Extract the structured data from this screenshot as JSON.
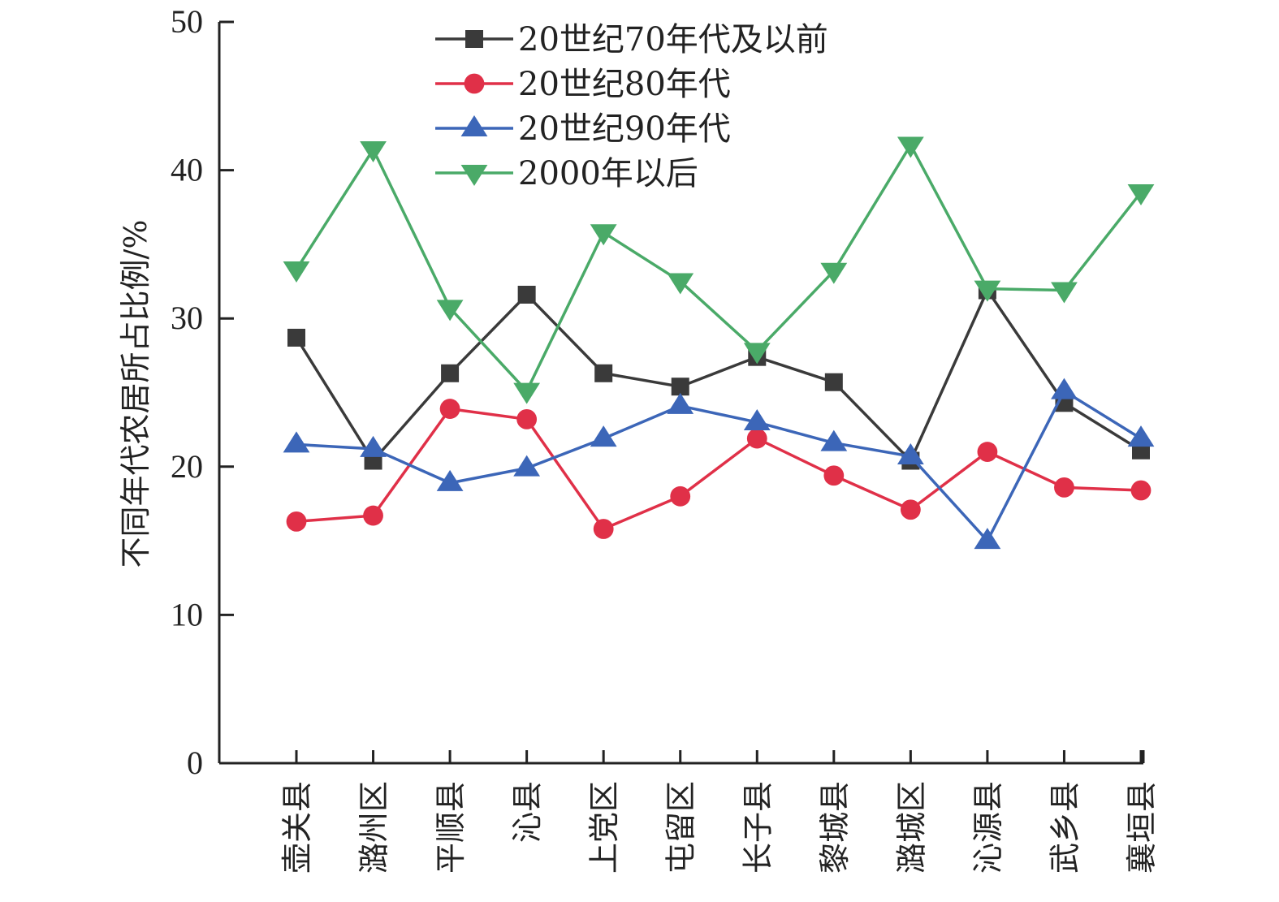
{
  "chart_data": {
    "type": "line",
    "title": "",
    "xlabel": "",
    "ylabel": "不同年代农居所占比例/%",
    "ylim": [
      0,
      50
    ],
    "yticks": [
      0,
      10,
      20,
      30,
      40,
      50
    ],
    "grid": false,
    "legend_position": "top-center",
    "categories": [
      "壶关县",
      "潞州区",
      "平顺县",
      "沁县",
      "上党区",
      "屯留区",
      "长子县",
      "黎城县",
      "潞城区",
      "沁源县",
      "武乡县",
      "襄垣县"
    ],
    "series": [
      {
        "name": "20世纪70年代及以前",
        "marker": "square",
        "color": "#3a3a3a",
        "values": [
          28.7,
          20.4,
          26.3,
          31.6,
          26.3,
          25.4,
          27.4,
          25.7,
          20.4,
          31.9,
          24.3,
          21.1
        ]
      },
      {
        "name": "20世纪80年代",
        "marker": "circle",
        "color": "#e03048",
        "values": [
          16.3,
          16.7,
          23.9,
          23.2,
          15.8,
          18.0,
          21.9,
          19.4,
          17.1,
          21.0,
          18.6,
          18.4
        ]
      },
      {
        "name": "20世纪90年代",
        "marker": "triangle-up",
        "color": "#3c66b8",
        "values": [
          21.5,
          21.2,
          18.9,
          19.9,
          21.9,
          24.1,
          23.0,
          21.6,
          20.7,
          15.0,
          25.1,
          21.9
        ]
      },
      {
        "name": "2000年以后",
        "marker": "triangle-down",
        "color": "#4aaa68",
        "values": [
          33.3,
          41.4,
          30.7,
          25.1,
          35.8,
          32.5,
          27.8,
          33.2,
          41.7,
          32.0,
          31.9,
          38.5
        ]
      }
    ]
  }
}
